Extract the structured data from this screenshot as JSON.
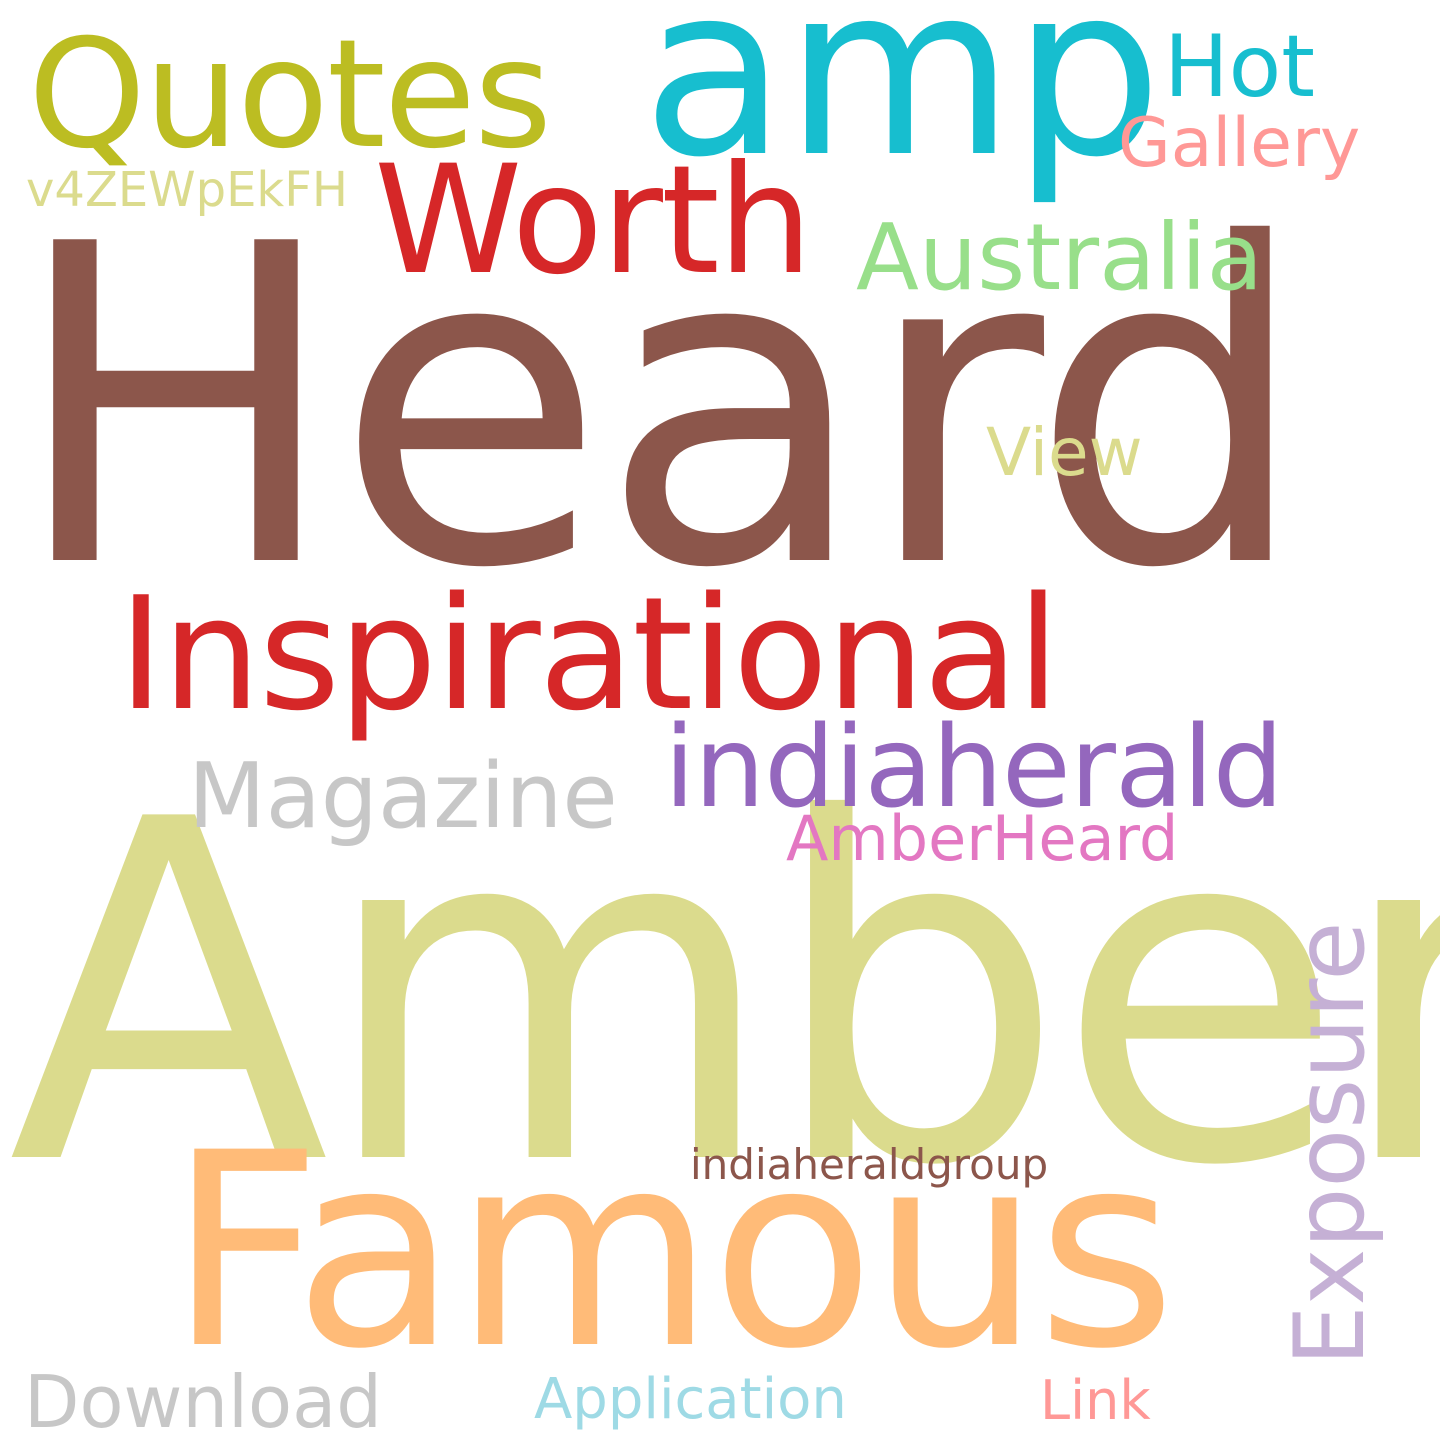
{
  "words": {
    "heard": {
      "text": "Heard",
      "color": "#8c564b"
    },
    "amber": {
      "text": "Amber",
      "color": "#dbdb8d"
    },
    "famous": {
      "text": "Famous",
      "color": "#ffbb78"
    },
    "amp": {
      "text": "amp",
      "color": "#17becf"
    },
    "quotes": {
      "text": "Quotes",
      "color": "#bcbd22"
    },
    "inspirational": {
      "text": "Inspirational",
      "color": "#d62728"
    },
    "worth": {
      "text": "Worth",
      "color": "#d62728"
    },
    "indiaherald": {
      "text": "indiaherald",
      "color": "#9467bd"
    },
    "australia": {
      "text": "Australia",
      "color": "#98df8a"
    },
    "hot": {
      "text": "Hot",
      "color": "#17becf"
    },
    "gallery": {
      "text": "Gallery",
      "color": "#ff9896"
    },
    "v4zew": {
      "text": "v4ZEWpEkFH",
      "color": "#dbdb8d"
    },
    "view": {
      "text": "View",
      "color": "#dbdb8d"
    },
    "magazine": {
      "text": "Magazine",
      "color": "#c7c7c7"
    },
    "amberheard": {
      "text": "AmberHeard",
      "color": "#e377c2"
    },
    "exposure": {
      "text": "Exposure",
      "color": "#c5b0d5"
    },
    "indiagroup": {
      "text": "indiaheraldgroup",
      "color": "#8c564b"
    },
    "download": {
      "text": "Download",
      "color": "#c7c7c7"
    },
    "application": {
      "text": "Application",
      "color": "#9edae5"
    },
    "link": {
      "text": "Link",
      "color": "#ff9896"
    }
  }
}
